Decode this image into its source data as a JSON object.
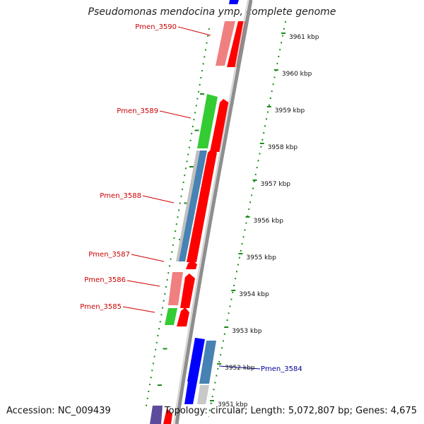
{
  "title": "Pseudomonas mendocina ymp, complete genome",
  "footer": {
    "accession": "Accession: NC_009439",
    "info": "Topology: circular; Length: 5,072,807 bp; Genes: 4,675"
  },
  "colors": {
    "backbone": "#8e8e8e",
    "tick": "#1a8a1a",
    "forward_red": "#ff0000",
    "pink": "#f08080",
    "green": "#33cc33",
    "blue": "#0000ff",
    "steelblue": "#4682b4",
    "gray": "#c8c8c8",
    "purple": "#5c4b9c",
    "label_red": "#cc0000",
    "label_blue": "#000099"
  },
  "scale": {
    "ticks": [
      {
        "label": "3961 kbp"
      },
      {
        "label": "3960 kbp"
      },
      {
        "label": "3959 kbp"
      },
      {
        "label": "3958 kbp"
      },
      {
        "label": "3957 kbp"
      },
      {
        "label": "3956 kbp"
      },
      {
        "label": "3955 kbp"
      },
      {
        "label": "3954 kbp"
      },
      {
        "label": "3953 kbp"
      },
      {
        "label": "3952 kbp"
      },
      {
        "label": "3951 kbp"
      }
    ]
  },
  "genes": [
    {
      "label": "Pmen_3590"
    },
    {
      "label": "Pmen_3589"
    },
    {
      "label": "Pmen_3588"
    },
    {
      "label": "Pmen_3587"
    },
    {
      "label": "Pmen_3586"
    },
    {
      "label": "Pmen_3585"
    },
    {
      "label": "Pmen_3584"
    }
  ]
}
